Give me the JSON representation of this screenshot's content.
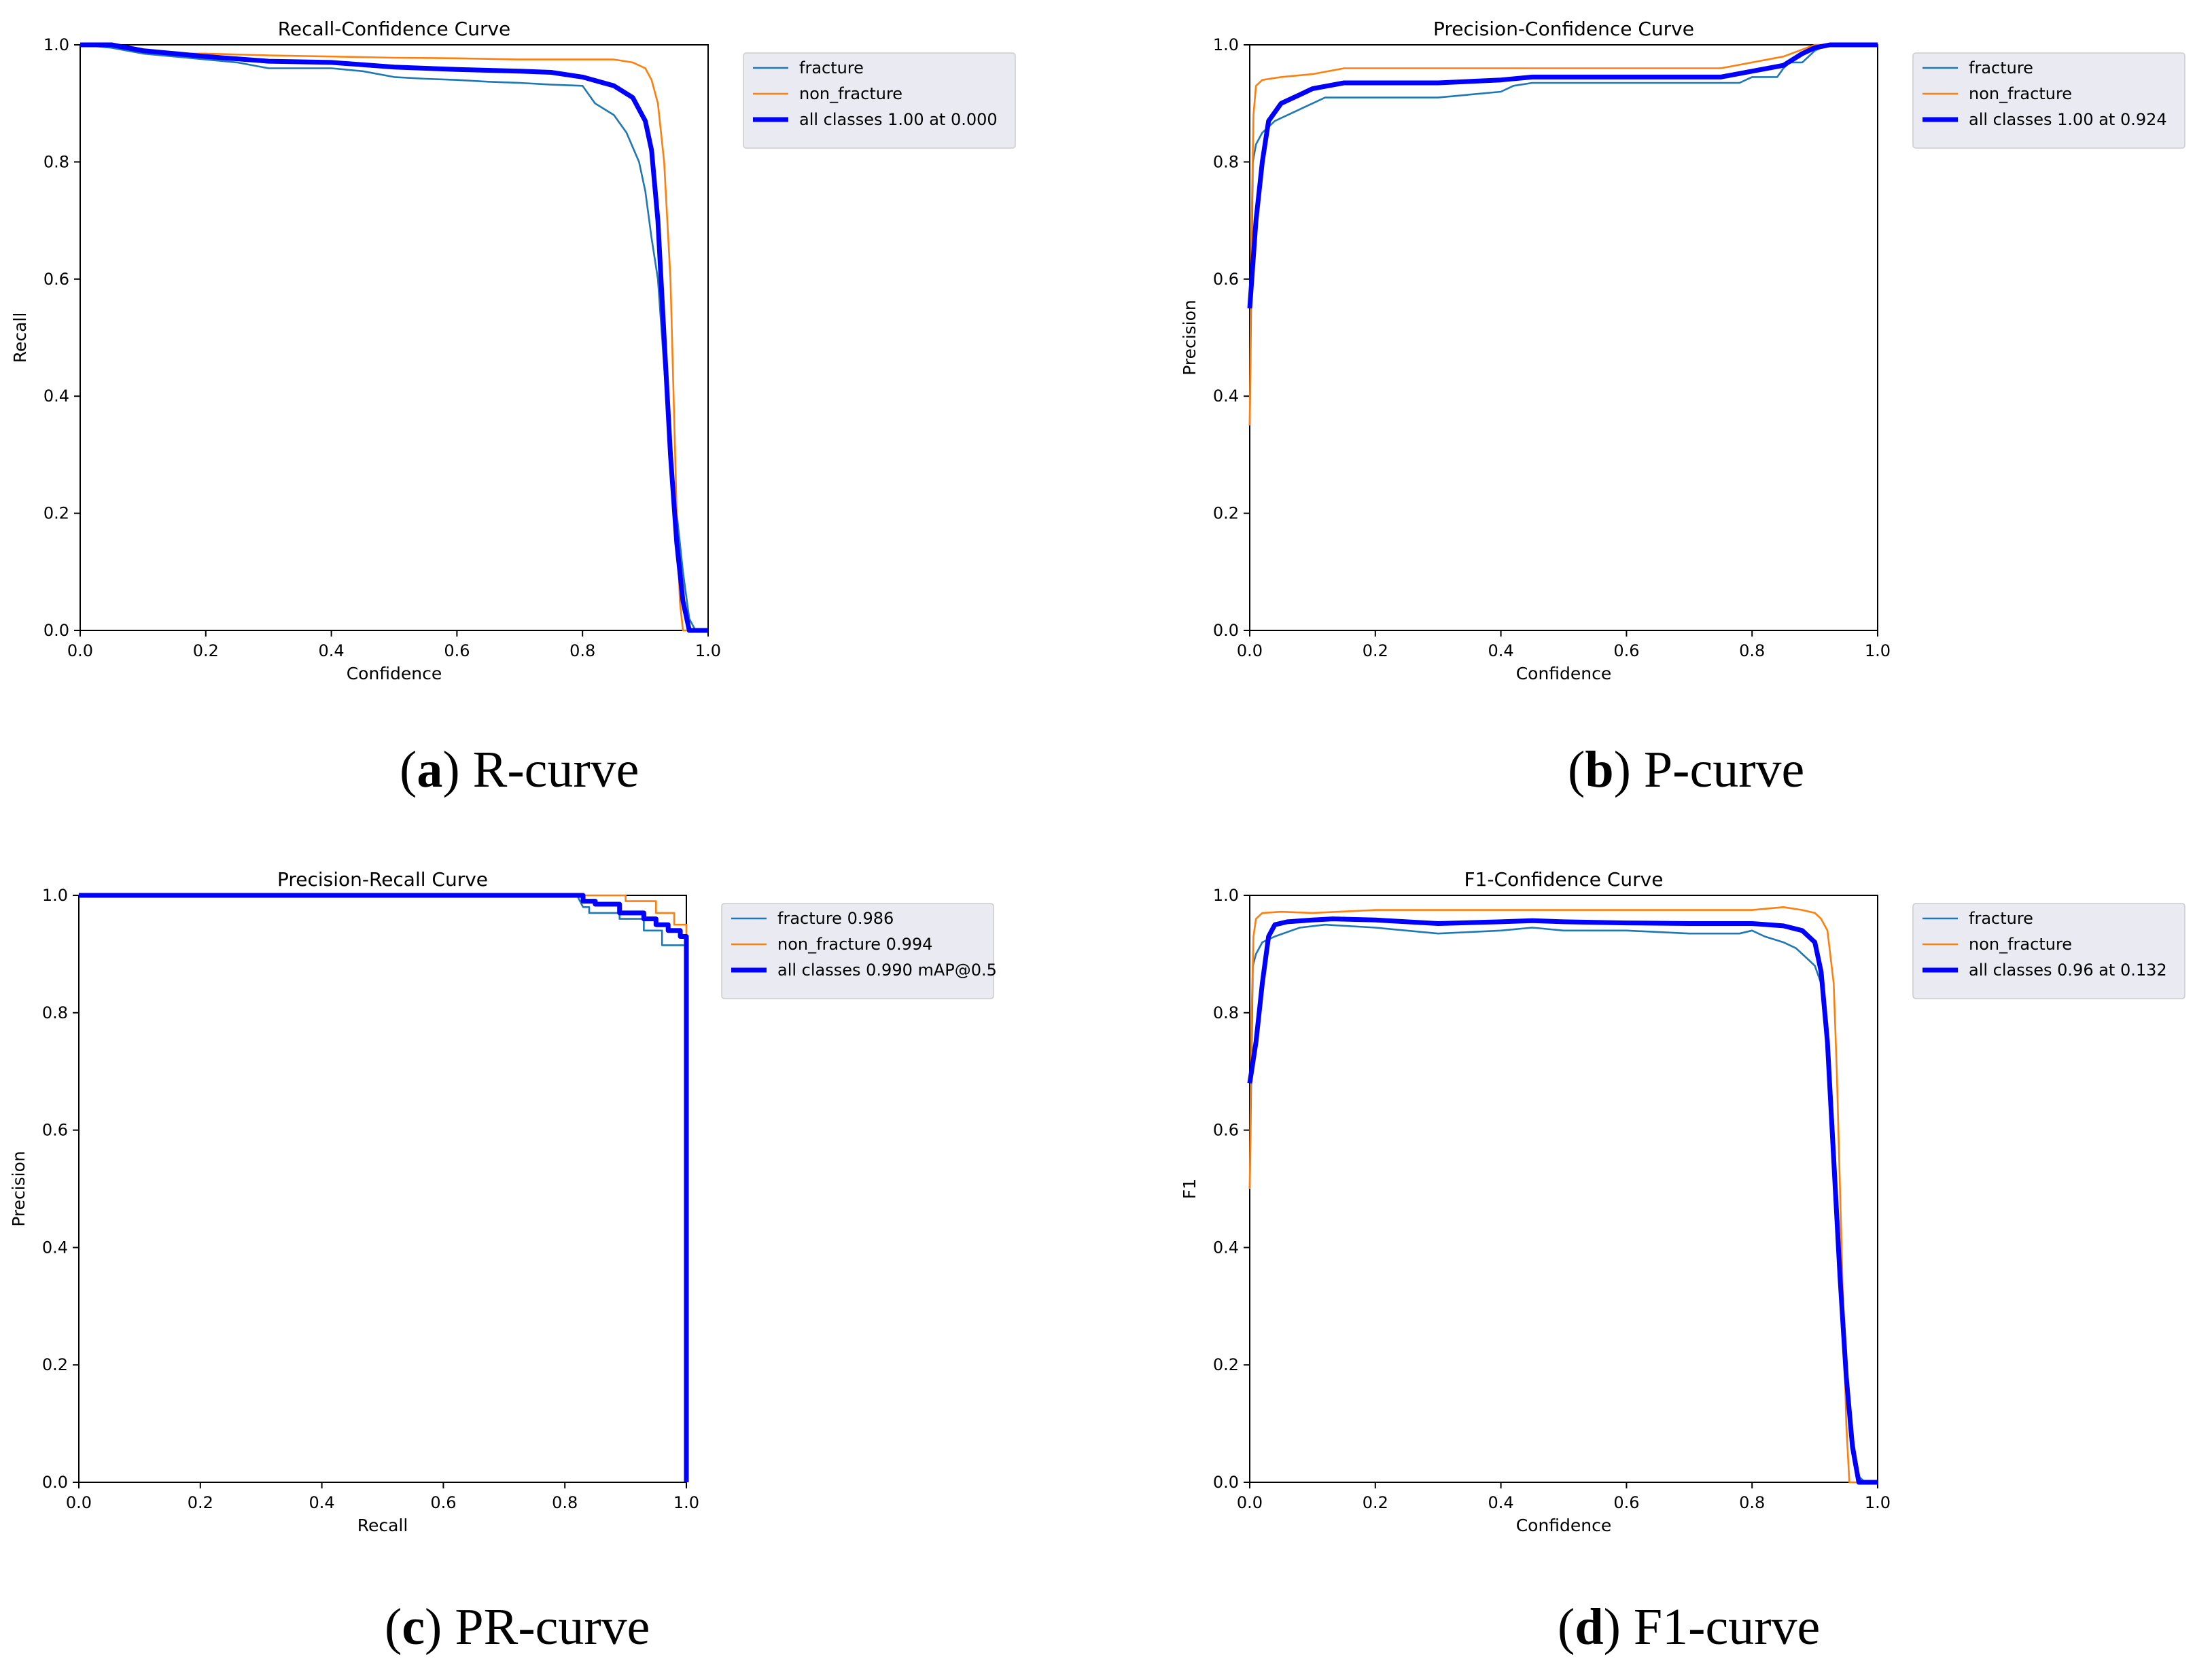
{
  "colors": {
    "fracture": "#1f77b4",
    "non_fracture": "#ff7f0e",
    "all_classes": "#0000ff",
    "legend_bg": "#eaeaf2"
  },
  "chart_data": [
    {
      "id": "a",
      "type": "line",
      "title": "Recall-Confidence Curve",
      "xlabel": "Confidence",
      "ylabel": "Recall",
      "xlim": [
        0,
        1
      ],
      "ylim": [
        0,
        1
      ],
      "xticks": [
        "0.0",
        "0.2",
        "0.4",
        "0.6",
        "0.8",
        "1.0"
      ],
      "yticks": [
        "0.0",
        "0.2",
        "0.4",
        "0.6",
        "0.8",
        "1.0"
      ],
      "grid": false,
      "legend_position": "outside-right",
      "caption_letter": "a",
      "caption_text": " R-curve",
      "series": [
        {
          "name": "fracture",
          "x": [
            0,
            0.05,
            0.1,
            0.15,
            0.2,
            0.25,
            0.3,
            0.35,
            0.4,
            0.45,
            0.5,
            0.55,
            0.6,
            0.65,
            0.7,
            0.75,
            0.8,
            0.82,
            0.85,
            0.87,
            0.89,
            0.9,
            0.91,
            0.92,
            0.93,
            0.94,
            0.95,
            0.96,
            0.97,
            0.98,
            1.0
          ],
          "y": [
            1.0,
            0.995,
            0.985,
            0.98,
            0.975,
            0.97,
            0.96,
            0.96,
            0.96,
            0.955,
            0.945,
            0.942,
            0.94,
            0.937,
            0.935,
            0.932,
            0.93,
            0.9,
            0.88,
            0.85,
            0.8,
            0.75,
            0.67,
            0.6,
            0.45,
            0.3,
            0.2,
            0.1,
            0.02,
            0.0,
            0.0
          ]
        },
        {
          "name": "non_fracture",
          "x": [
            0,
            0.05,
            0.1,
            0.15,
            0.2,
            0.3,
            0.4,
            0.5,
            0.6,
            0.7,
            0.75,
            0.8,
            0.85,
            0.88,
            0.9,
            0.91,
            0.92,
            0.93,
            0.94,
            0.945,
            0.95,
            0.955,
            0.96,
            1.0
          ],
          "y": [
            1.0,
            1.0,
            0.99,
            0.985,
            0.985,
            0.982,
            0.98,
            0.978,
            0.977,
            0.975,
            0.975,
            0.975,
            0.975,
            0.97,
            0.96,
            0.94,
            0.9,
            0.8,
            0.6,
            0.4,
            0.2,
            0.05,
            0.0,
            0.0
          ]
        },
        {
          "name": "all classes 1.00 at 0.000",
          "x": [
            0,
            0.05,
            0.1,
            0.15,
            0.2,
            0.3,
            0.4,
            0.5,
            0.6,
            0.7,
            0.75,
            0.8,
            0.85,
            0.88,
            0.9,
            0.91,
            0.92,
            0.93,
            0.94,
            0.95,
            0.96,
            0.97,
            0.98,
            1.0
          ],
          "y": [
            1.0,
            1.0,
            0.99,
            0.985,
            0.98,
            0.972,
            0.97,
            0.962,
            0.958,
            0.955,
            0.953,
            0.945,
            0.93,
            0.91,
            0.87,
            0.82,
            0.7,
            0.5,
            0.3,
            0.15,
            0.05,
            0.0,
            0.0,
            0.0
          ]
        }
      ]
    },
    {
      "id": "b",
      "type": "line",
      "title": "Precision-Confidence Curve",
      "xlabel": "Confidence",
      "ylabel": "Precision",
      "xlim": [
        0,
        1
      ],
      "ylim": [
        0,
        1
      ],
      "xticks": [
        "0.0",
        "0.2",
        "0.4",
        "0.6",
        "0.8",
        "1.0"
      ],
      "yticks": [
        "0.0",
        "0.2",
        "0.4",
        "0.6",
        "0.8",
        "1.0"
      ],
      "grid": false,
      "legend_position": "outside-right",
      "caption_letter": "b",
      "caption_text": " P-curve",
      "series": [
        {
          "name": "fracture",
          "x": [
            0,
            0.005,
            0.01,
            0.02,
            0.04,
            0.08,
            0.12,
            0.2,
            0.3,
            0.4,
            0.42,
            0.45,
            0.55,
            0.65,
            0.75,
            0.78,
            0.8,
            0.84,
            0.85,
            0.86,
            0.88,
            0.9,
            0.92,
            1.0
          ],
          "y": [
            0.35,
            0.8,
            0.83,
            0.85,
            0.87,
            0.89,
            0.91,
            0.91,
            0.91,
            0.92,
            0.93,
            0.935,
            0.935,
            0.935,
            0.935,
            0.935,
            0.945,
            0.945,
            0.96,
            0.97,
            0.97,
            0.99,
            1.0,
            1.0
          ]
        },
        {
          "name": "non_fracture",
          "x": [
            0,
            0.003,
            0.006,
            0.01,
            0.02,
            0.05,
            0.1,
            0.15,
            0.3,
            0.5,
            0.7,
            0.75,
            0.8,
            0.85,
            0.9,
            1.0
          ],
          "y": [
            0.35,
            0.7,
            0.88,
            0.93,
            0.94,
            0.945,
            0.95,
            0.96,
            0.96,
            0.96,
            0.96,
            0.96,
            0.97,
            0.98,
            1.0,
            1.0
          ]
        },
        {
          "name": "all classes 1.00 at 0.924",
          "x": [
            0,
            0.01,
            0.02,
            0.03,
            0.05,
            0.08,
            0.1,
            0.15,
            0.2,
            0.3,
            0.4,
            0.45,
            0.5,
            0.6,
            0.7,
            0.75,
            0.8,
            0.85,
            0.88,
            0.9,
            0.924,
            1.0
          ],
          "y": [
            0.55,
            0.7,
            0.8,
            0.87,
            0.9,
            0.915,
            0.925,
            0.935,
            0.935,
            0.935,
            0.94,
            0.945,
            0.945,
            0.945,
            0.945,
            0.945,
            0.955,
            0.965,
            0.985,
            0.995,
            1.0,
            1.0
          ]
        }
      ]
    },
    {
      "id": "c",
      "type": "line",
      "title": "Precision-Recall Curve",
      "xlabel": "Recall",
      "ylabel": "Precision",
      "xlim": [
        0,
        1
      ],
      "ylim": [
        0,
        1
      ],
      "xticks": [
        "0.0",
        "0.2",
        "0.4",
        "0.6",
        "0.8",
        "1.0"
      ],
      "yticks": [
        "0.0",
        "0.2",
        "0.4",
        "0.6",
        "0.8",
        "1.0"
      ],
      "grid": false,
      "legend_position": "outside-right",
      "caption_letter": "c",
      "caption_text": " PR-curve",
      "series": [
        {
          "name": "fracture 0.986",
          "x": [
            0,
            0.8,
            0.82,
            0.83,
            0.84,
            0.84,
            0.89,
            0.89,
            0.93,
            0.93,
            0.96,
            0.96,
            1.0,
            1.0
          ],
          "y": [
            1.0,
            1.0,
            1.0,
            0.98,
            0.98,
            0.97,
            0.97,
            0.96,
            0.96,
            0.94,
            0.94,
            0.915,
            0.915,
            0.0
          ]
        },
        {
          "name": "non_fracture 0.994",
          "x": [
            0,
            0.9,
            0.9,
            0.95,
            0.95,
            0.98,
            0.98,
            1.0,
            1.0
          ],
          "y": [
            1.0,
            1.0,
            0.99,
            0.99,
            0.97,
            0.97,
            0.95,
            0.95,
            0.0
          ]
        },
        {
          "name": "all classes 0.990 mAP@0.5",
          "x": [
            0,
            0.82,
            0.83,
            0.83,
            0.85,
            0.85,
            0.89,
            0.89,
            0.93,
            0.93,
            0.95,
            0.95,
            0.97,
            0.97,
            0.99,
            0.99,
            1.0,
            1.0
          ],
          "y": [
            1.0,
            1.0,
            1.0,
            0.99,
            0.99,
            0.985,
            0.985,
            0.97,
            0.97,
            0.96,
            0.96,
            0.95,
            0.95,
            0.94,
            0.94,
            0.93,
            0.93,
            0.0
          ]
        }
      ]
    },
    {
      "id": "d",
      "type": "line",
      "title": "F1-Confidence Curve",
      "xlabel": "Confidence",
      "ylabel": "F1",
      "xlim": [
        0,
        1
      ],
      "ylim": [
        0,
        1
      ],
      "xticks": [
        "0.0",
        "0.2",
        "0.4",
        "0.6",
        "0.8",
        "1.0"
      ],
      "yticks": [
        "0.0",
        "0.2",
        "0.4",
        "0.6",
        "0.8",
        "1.0"
      ],
      "grid": false,
      "legend_position": "outside-right",
      "caption_letter": "d",
      "caption_text": " F1-curve",
      "series": [
        {
          "name": "fracture",
          "x": [
            0,
            0.005,
            0.01,
            0.02,
            0.04,
            0.08,
            0.12,
            0.2,
            0.3,
            0.4,
            0.45,
            0.5,
            0.6,
            0.7,
            0.78,
            0.8,
            0.82,
            0.85,
            0.87,
            0.89,
            0.9,
            0.91,
            0.92,
            0.93,
            0.94,
            0.95,
            0.96,
            0.97,
            0.98,
            1.0
          ],
          "y": [
            0.5,
            0.88,
            0.9,
            0.92,
            0.93,
            0.945,
            0.95,
            0.945,
            0.935,
            0.94,
            0.945,
            0.94,
            0.94,
            0.935,
            0.935,
            0.94,
            0.93,
            0.92,
            0.91,
            0.89,
            0.88,
            0.85,
            0.78,
            0.6,
            0.4,
            0.2,
            0.08,
            0.01,
            0.0,
            0.0
          ]
        },
        {
          "name": "non_fracture",
          "x": [
            0,
            0.003,
            0.006,
            0.01,
            0.02,
            0.05,
            0.1,
            0.2,
            0.3,
            0.5,
            0.7,
            0.8,
            0.85,
            0.88,
            0.9,
            0.91,
            0.92,
            0.93,
            0.935,
            0.94,
            0.945,
            0.95,
            0.955,
            1.0
          ],
          "y": [
            0.5,
            0.8,
            0.93,
            0.96,
            0.97,
            0.972,
            0.97,
            0.975,
            0.975,
            0.975,
            0.975,
            0.975,
            0.98,
            0.975,
            0.97,
            0.96,
            0.94,
            0.85,
            0.7,
            0.5,
            0.3,
            0.1,
            0.0,
            0.0
          ]
        },
        {
          "name": "all classes 0.96 at 0.132",
          "x": [
            0,
            0.01,
            0.02,
            0.03,
            0.04,
            0.06,
            0.1,
            0.132,
            0.2,
            0.3,
            0.4,
            0.45,
            0.5,
            0.6,
            0.7,
            0.8,
            0.85,
            0.88,
            0.9,
            0.91,
            0.92,
            0.93,
            0.94,
            0.95,
            0.96,
            0.97,
            0.98,
            1.0
          ],
          "y": [
            0.68,
            0.75,
            0.85,
            0.93,
            0.95,
            0.955,
            0.958,
            0.96,
            0.958,
            0.952,
            0.955,
            0.957,
            0.955,
            0.953,
            0.952,
            0.952,
            0.948,
            0.94,
            0.92,
            0.87,
            0.75,
            0.55,
            0.35,
            0.18,
            0.06,
            0.0,
            0.0,
            0.0
          ]
        }
      ]
    }
  ]
}
